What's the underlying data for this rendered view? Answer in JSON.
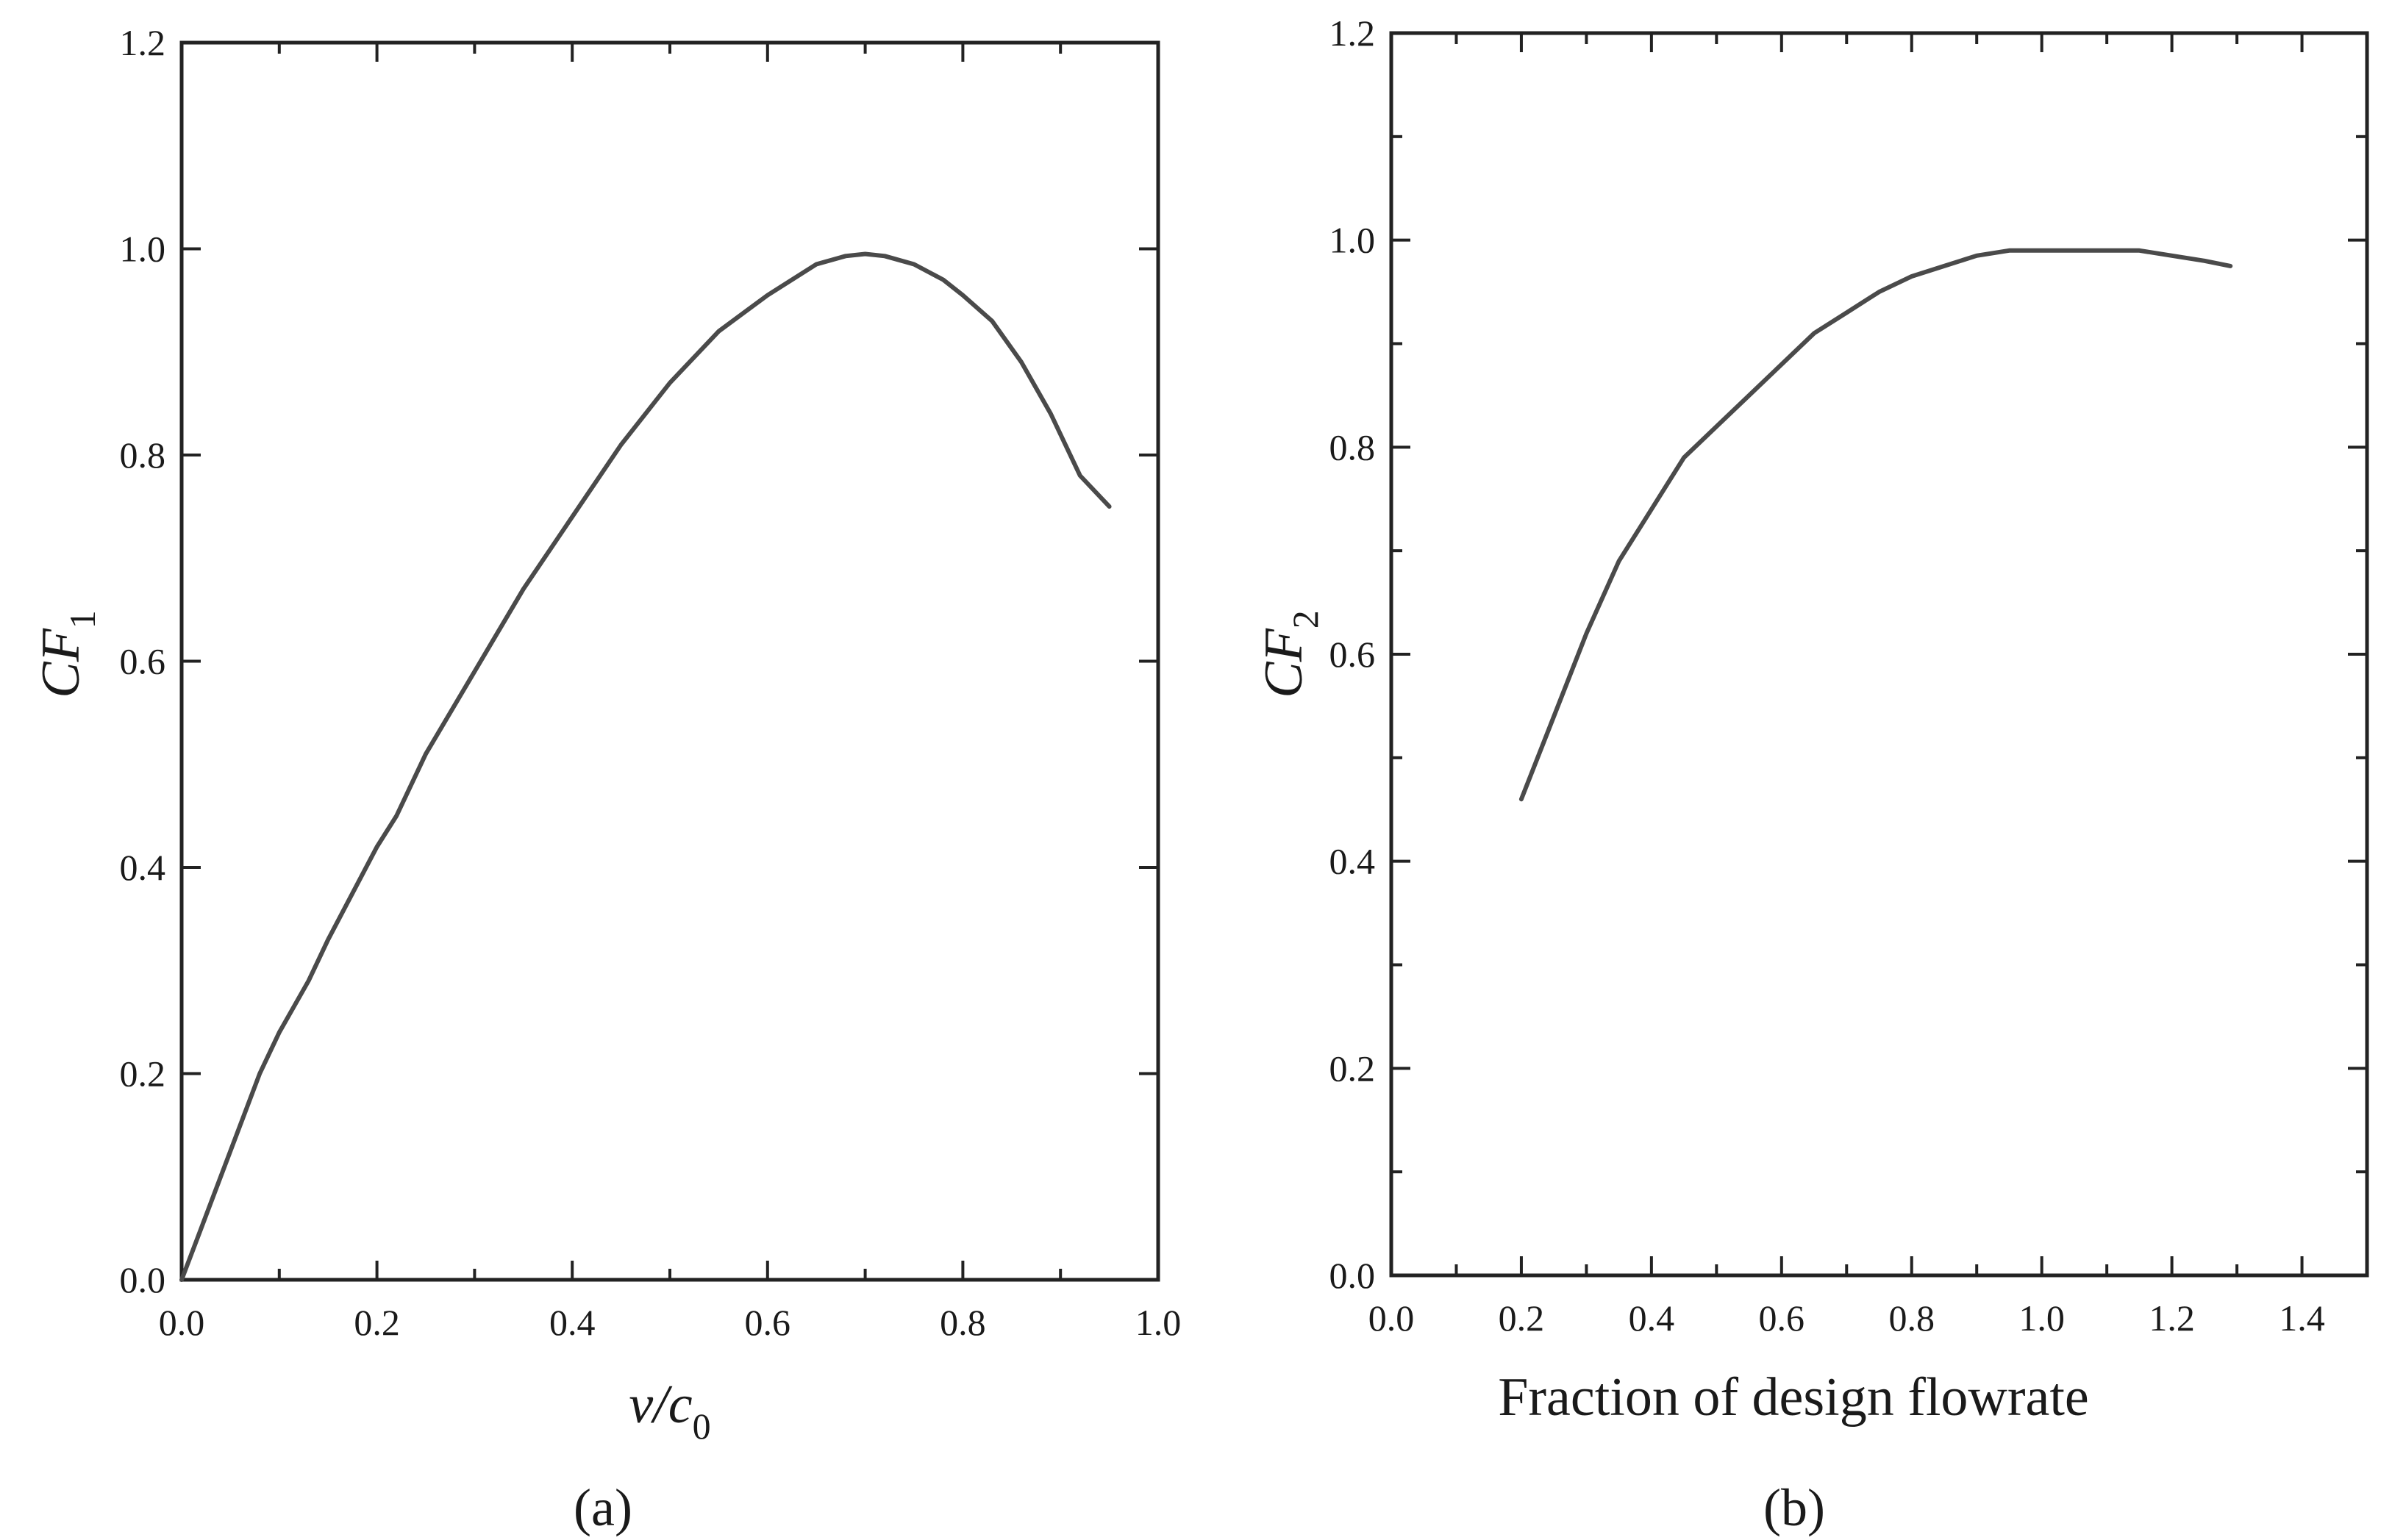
{
  "chart_data": [
    {
      "type": "line",
      "panel_label": "(a)",
      "xlabel": {
        "main": "v/c",
        "sub": "0"
      },
      "ylabel": {
        "main": "CF",
        "sub": "1"
      },
      "xlim": [
        0.0,
        1.0
      ],
      "ylim": [
        0.0,
        1.2
      ],
      "xticks": [
        0.0,
        0.2,
        0.4,
        0.6,
        0.8,
        1.0
      ],
      "xtick_labels": [
        "0.0",
        "0.2",
        "0.4",
        "0.6",
        "0.8",
        "1.0"
      ],
      "yticks": [
        0.0,
        0.2,
        0.4,
        0.6,
        0.8,
        1.0,
        1.2
      ],
      "ytick_labels": [
        "0.0",
        "0.2",
        "0.4",
        "0.6",
        "0.8",
        "1.0",
        "1.2"
      ],
      "x_minor_step": 0.1,
      "y_minor_step": null,
      "grid": false,
      "line_color": "#4a4a4a",
      "series": [
        {
          "x": [
            0.0,
            0.02,
            0.04,
            0.06,
            0.08,
            0.1,
            0.13,
            0.15,
            0.2,
            0.22,
            0.25,
            0.3,
            0.35,
            0.4,
            0.45,
            0.5,
            0.55,
            0.6,
            0.65,
            0.68,
            0.7,
            0.72,
            0.75,
            0.78,
            0.8,
            0.83,
            0.86,
            0.89,
            0.92,
            0.95
          ],
          "y": [
            0.0,
            0.05,
            0.1,
            0.15,
            0.2,
            0.24,
            0.29,
            0.33,
            0.42,
            0.45,
            0.51,
            0.59,
            0.67,
            0.74,
            0.81,
            0.87,
            0.92,
            0.955,
            0.985,
            0.993,
            0.995,
            0.993,
            0.985,
            0.97,
            0.955,
            0.93,
            0.89,
            0.84,
            0.78,
            0.75
          ]
        }
      ]
    },
    {
      "type": "line",
      "panel_label": "(b)",
      "xlabel": {
        "main": "Fraction of design flowrate",
        "sub": ""
      },
      "ylabel": {
        "main": "CF",
        "sub": "2"
      },
      "xlim": [
        0.0,
        1.5
      ],
      "ylim": [
        0.0,
        1.2
      ],
      "xticks": [
        0.0,
        0.2,
        0.4,
        0.6,
        0.8,
        1.0,
        1.2,
        1.4
      ],
      "xtick_labels": [
        "0.0",
        "0.2",
        "0.4",
        "0.6",
        "0.8",
        "1.0",
        "1.2",
        "1.4"
      ],
      "yticks": [
        0.0,
        0.2,
        0.4,
        0.6,
        0.8,
        1.0,
        1.2
      ],
      "ytick_labels": [
        "0.0",
        "0.2",
        "0.4",
        "0.6",
        "0.8",
        "1.0",
        "1.2"
      ],
      "x_minor_step": 0.1,
      "y_minor_step": 0.1,
      "grid": false,
      "line_color": "#4a4a4a",
      "series": [
        {
          "x": [
            0.2,
            0.25,
            0.3,
            0.35,
            0.4,
            0.45,
            0.5,
            0.55,
            0.6,
            0.65,
            0.7,
            0.75,
            0.8,
            0.85,
            0.9,
            0.95,
            1.0,
            1.05,
            1.1,
            1.15,
            1.2,
            1.25,
            1.29
          ],
          "y": [
            0.46,
            0.54,
            0.62,
            0.69,
            0.74,
            0.79,
            0.82,
            0.85,
            0.88,
            0.91,
            0.93,
            0.95,
            0.965,
            0.975,
            0.985,
            0.99,
            0.99,
            0.99,
            0.99,
            0.99,
            0.985,
            0.98,
            0.975
          ]
        }
      ]
    }
  ]
}
